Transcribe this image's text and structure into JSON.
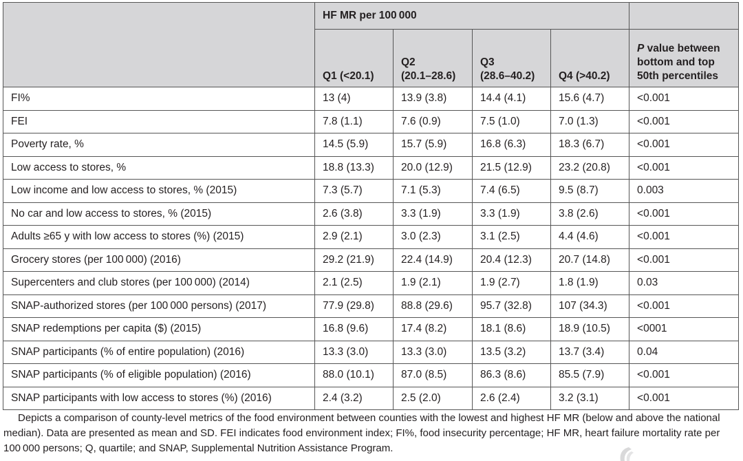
{
  "table": {
    "header": {
      "group_label": "HF MR per 100 000",
      "quartiles": [
        {
          "line1": "",
          "line2": "Q1 (<20.1)"
        },
        {
          "line1": "Q2",
          "line2": "(20.1–28.6)"
        },
        {
          "line1": "Q3",
          "line2": "(28.6–40.2)"
        },
        {
          "line1": "",
          "line2": "Q4 (>40.2)"
        }
      ],
      "pvalue_italic": "P",
      "pvalue_rest": " value between",
      "pvalue_line2": "bottom and top",
      "pvalue_line3": "50th percentiles"
    },
    "rows": [
      {
        "label": "FI%",
        "q1": "13 (4)",
        "q2": "13.9 (3.8)",
        "q3": "14.4 (4.1)",
        "q4": "15.6 (4.7)",
        "p": "<0.001"
      },
      {
        "label": "FEI",
        "q1": "7.8 (1.1)",
        "q2": "7.6 (0.9)",
        "q3": "7.5 (1.0)",
        "q4": "7.0 (1.3)",
        "p": "<0.001"
      },
      {
        "label": "Poverty rate, %",
        "q1": "14.5 (5.9)",
        "q2": "15.7 (5.9)",
        "q3": "16.8 (6.3)",
        "q4": "18.3 (6.7)",
        "p": "<0.001"
      },
      {
        "label": "Low access to stores, %",
        "q1": "18.8 (13.3)",
        "q2": "20.0 (12.9)",
        "q3": "21.5 (12.9)",
        "q4": "23.2 (20.8)",
        "p": "<0.001"
      },
      {
        "label": "Low income and low access to stores, % (2015)",
        "q1": "7.3 (5.7)",
        "q2": "7.1 (5.3)",
        "q3": "7.4 (6.5)",
        "q4": "9.5 (8.7)",
        "p": "0.003"
      },
      {
        "label": "No car and low access to stores, % (2015)",
        "q1": "2.6 (3.8)",
        "q2": "3.3 (1.9)",
        "q3": "3.3 (1.9)",
        "q4": "3.8 (2.6)",
        "p": "<0.001"
      },
      {
        "label": "Adults ≥65 y with low access to stores (%) (2015)",
        "q1": "2.9 (2.1)",
        "q2": "3.0 (2.3)",
        "q3": "3.1 (2.5)",
        "q4": "4.4 (4.6)",
        "p": "<0.001"
      },
      {
        "label": "Grocery stores (per 100 000) (2016)",
        "q1": "29.2 (21.9)",
        "q2": "22.4 (14.9)",
        "q3": "20.4 (12.3)",
        "q4": "20.7 (14.8)",
        "p": "<0.001"
      },
      {
        "label": "Supercenters and club stores (per 100 000) (2014)",
        "q1": "2.1 (2.5)",
        "q2": "1.9 (2.1)",
        "q3": "1.9 (2.7)",
        "q4": "1.8 (1.9)",
        "p": "0.03"
      },
      {
        "label": "SNAP-authorized stores (per 100 000 persons) (2017)",
        "q1": "77.9 (29.8)",
        "q2": "88.8 (29.6)",
        "q3": "95.7 (32.8)",
        "q4": "107 (34.3)",
        "p": "<0.001"
      },
      {
        "label": "SNAP redemptions per capita ($) (2015)",
        "q1": "16.8 (9.6)",
        "q2": "17.4 (8.2)",
        "q3": "18.1 (8.6)",
        "q4": "18.9 (10.5)",
        "p": "<0001"
      },
      {
        "label": "SNAP participants (% of entire population) (2016)",
        "q1": "13.3 (3.0)",
        "q2": "13.3 (3.0)",
        "q3": "13.5 (3.2)",
        "q4": "13.7 (3.4)",
        "p": "0.04"
      },
      {
        "label": "SNAP participants (% of eligible population) (2016)",
        "q1": "88.0 (10.1)",
        "q2": "87.0 (8.5)",
        "q3": "86.3 (8.6)",
        "q4": "85.5 (7.9)",
        "p": "<0.001"
      },
      {
        "label": "SNAP participants with low access to stores (%) (2016)",
        "q1": "2.4 (3.2)",
        "q2": "2.5 (2.0)",
        "q3": "2.6 (2.4)",
        "q4": "3.2 (3.1)",
        "p": "<0.001"
      }
    ]
  },
  "caption": "Depicts a comparison of county-level metrics of the food environment between counties with the lowest and highest HF MR (below and above the national median). Data are presented as mean and SD. FEI indicates food environment index; FI%, food insecurity percentage; HF MR, heart failure mortality rate per 100 000 persons; Q, quartile; and SNAP, Supplemental Nutrition Assistance Program.",
  "icons": {
    "corner_mark": "publisher-logo-fragment-icon"
  },
  "colors": {
    "header_bg": "#d6d6d8",
    "border": "#555555",
    "text": "#231f20"
  }
}
